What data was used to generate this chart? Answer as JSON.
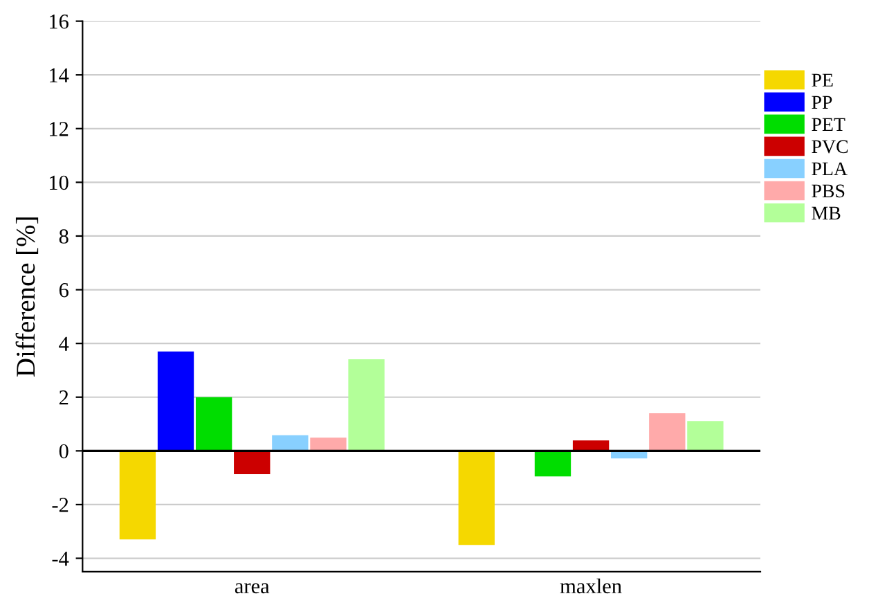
{
  "chart_data": {
    "type": "bar",
    "ylabel": "Difference [%]",
    "categories": [
      "area",
      "maxlen"
    ],
    "series": [
      {
        "name": "PE",
        "color": "#f5d800",
        "values": [
          -3.3,
          -3.5
        ]
      },
      {
        "name": "PP",
        "color": "#0000ff",
        "values": [
          3.7,
          0
        ]
      },
      {
        "name": "PET",
        "color": "#00dd00",
        "values": [
          2.0,
          -0.95
        ]
      },
      {
        "name": "PVC",
        "color": "#cc0000",
        "values": [
          -0.87,
          0.39
        ]
      },
      {
        "name": "PLA",
        "color": "#88d0ff",
        "values": [
          0.58,
          -0.28
        ]
      },
      {
        "name": "PBS",
        "color": "#ffaaaa",
        "values": [
          0.49,
          1.4
        ]
      },
      {
        "name": "MB",
        "color": "#b3ff99",
        "values": [
          3.41,
          1.11
        ]
      }
    ],
    "ylim": [
      -4.5,
      16
    ],
    "yticks": [
      {
        "value": -4,
        "label": "-4"
      },
      {
        "value": -2,
        "label": "-2"
      },
      0,
      2,
      4,
      6,
      8,
      10,
      12,
      14,
      16
    ],
    "ref_lines": [
      {
        "axis": "y",
        "value": 0,
        "color": "#000000"
      }
    ],
    "grid": "y",
    "legend": "right"
  }
}
